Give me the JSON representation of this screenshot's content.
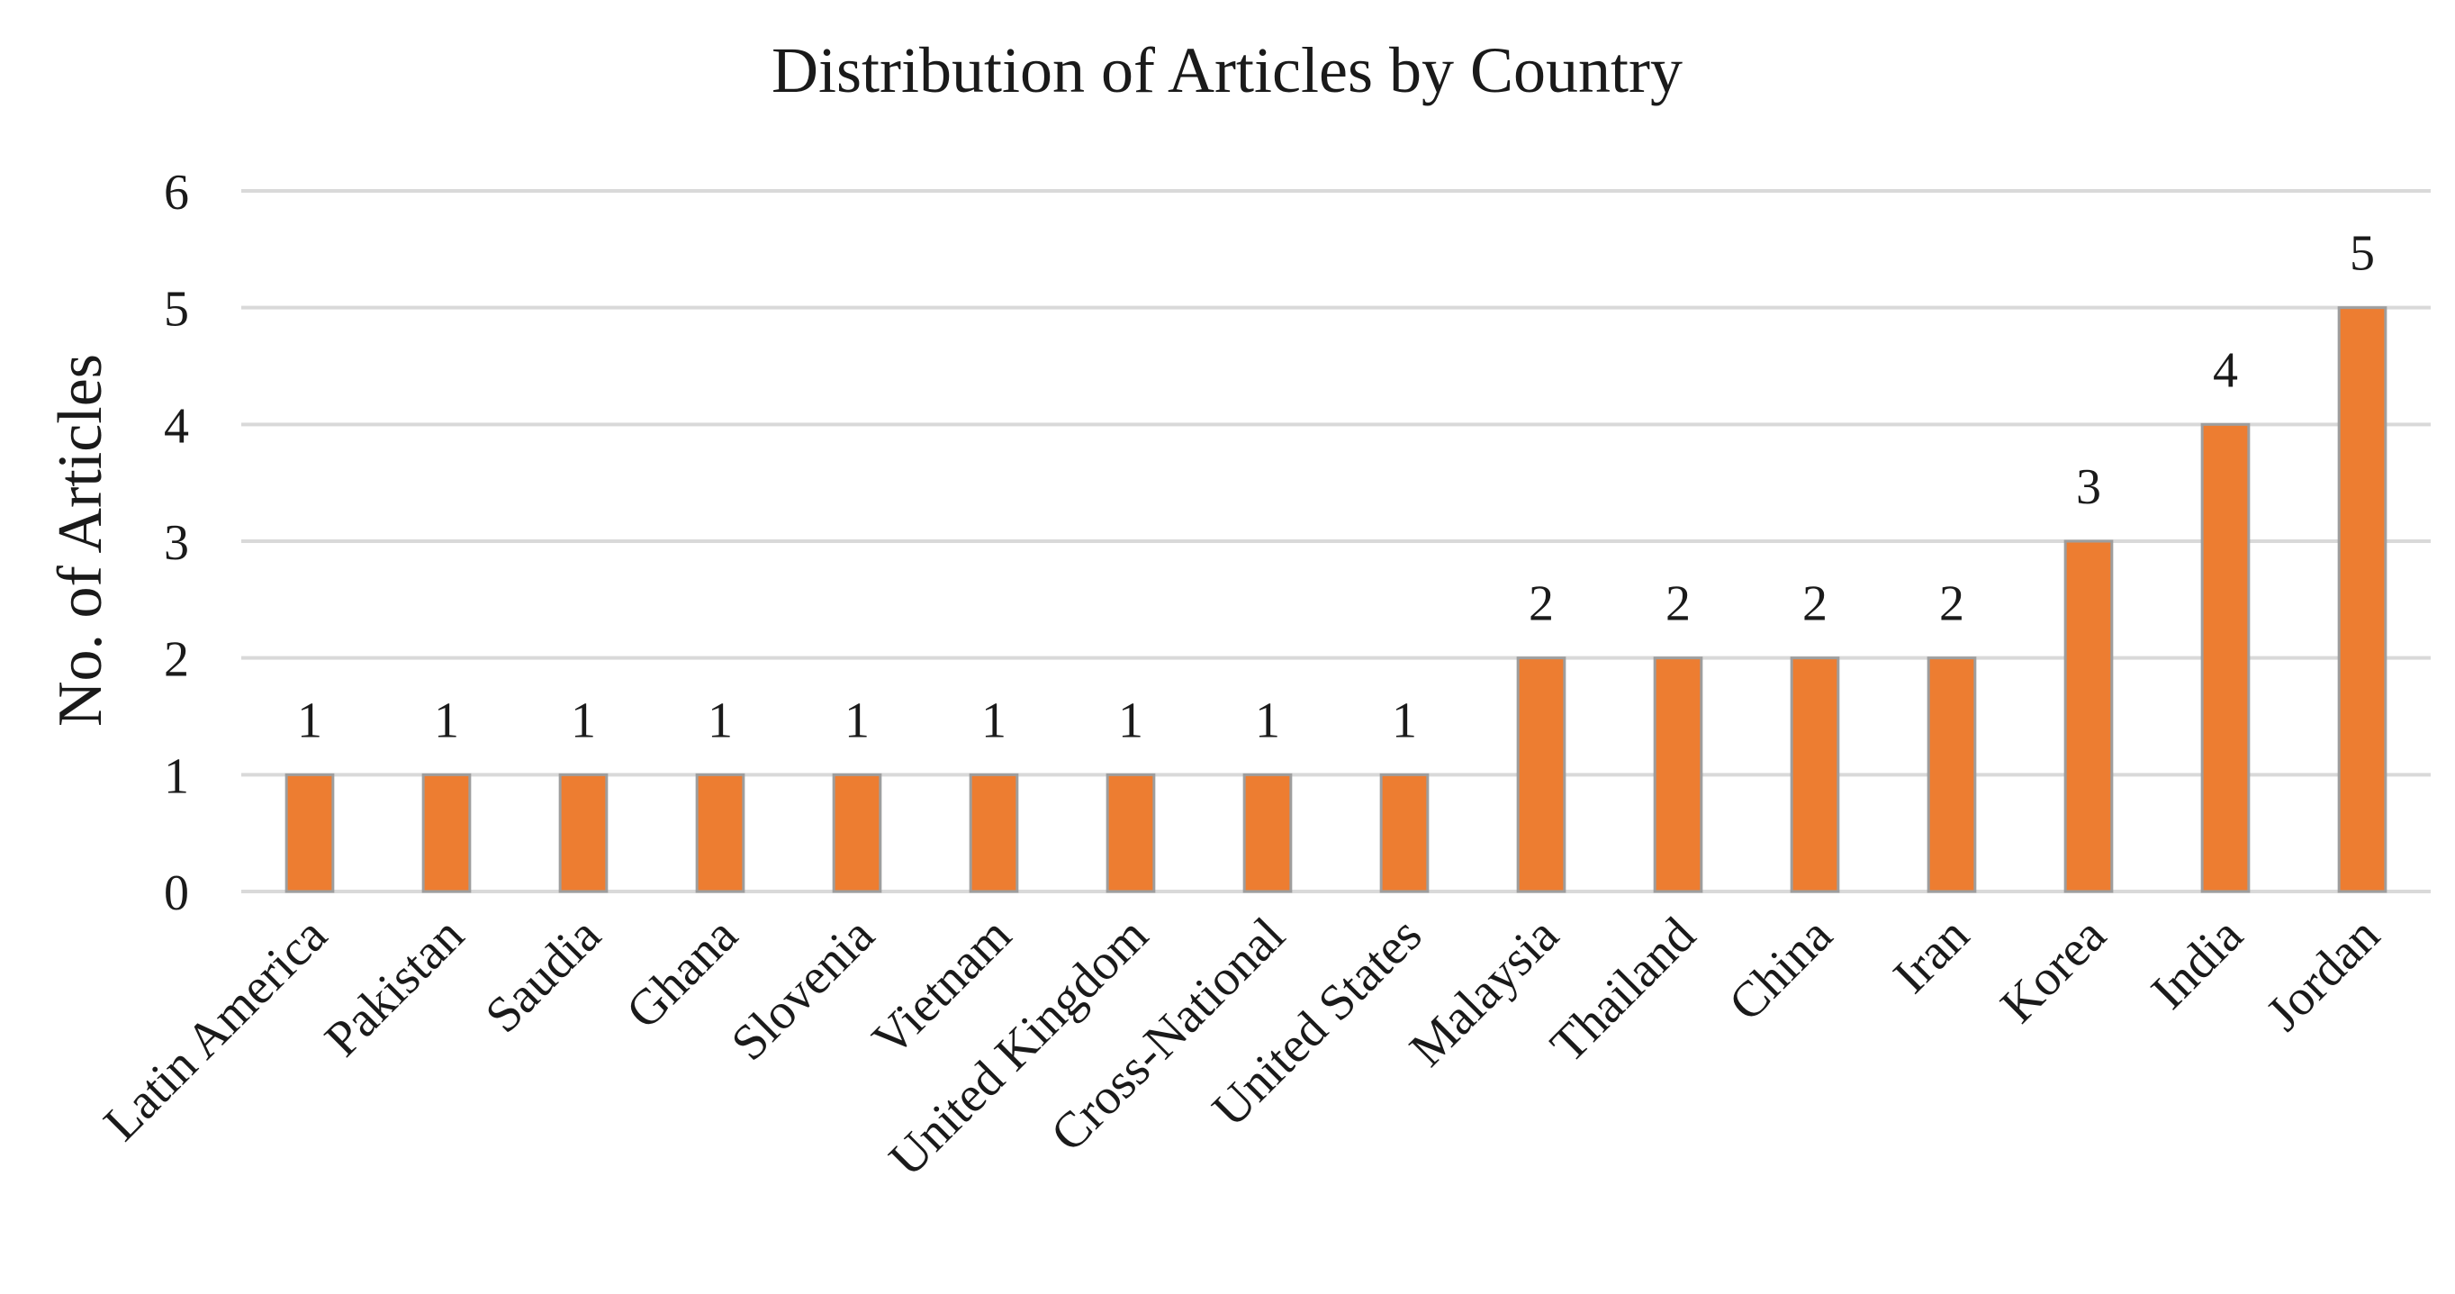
{
  "chart_data": {
    "type": "bar",
    "title": "Distribution of Articles by Country",
    "xlabel": "",
    "ylabel": "No. of Articles",
    "categories": [
      "Latin America",
      "Pakistan",
      "Saudia",
      "Ghana",
      "Slovenia",
      "Vietnam",
      "United Kingdom",
      "Cross-National",
      "United States",
      "Malaysia",
      "Thailand",
      "China",
      "Iran",
      "Korea",
      "India",
      "Jordan"
    ],
    "values": [
      1,
      1,
      1,
      1,
      1,
      1,
      1,
      1,
      1,
      2,
      2,
      2,
      2,
      3,
      4,
      5
    ],
    "ylim": [
      0,
      6
    ],
    "yticks": [
      0,
      1,
      2,
      3,
      4,
      5,
      6
    ],
    "grid": true,
    "legend": "none",
    "data_labels": true,
    "bar_color": "#ed7d31",
    "bar_edge_color": "#9e9e9e"
  }
}
